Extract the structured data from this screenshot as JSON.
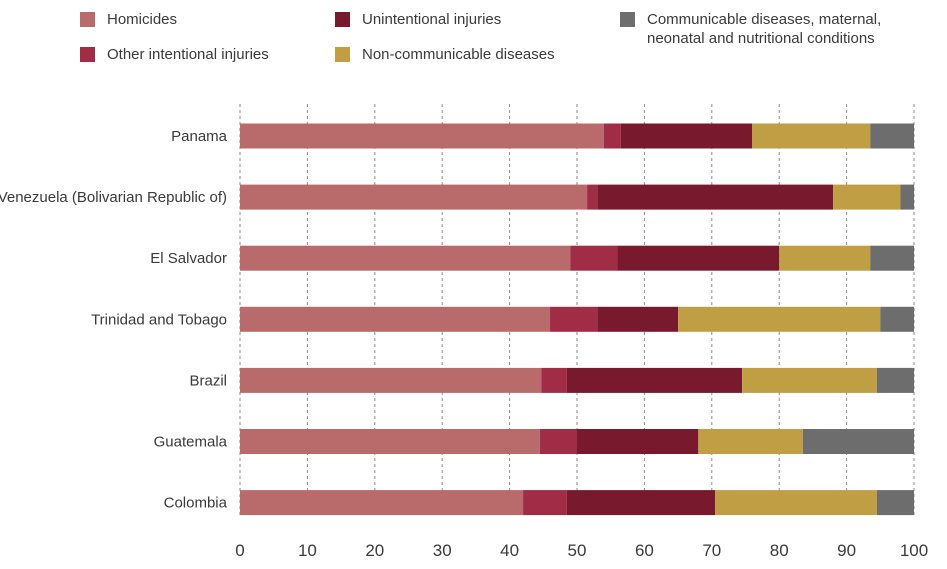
{
  "chart_data": {
    "type": "bar",
    "orientation": "horizontal",
    "stacked": true,
    "categories": [
      "Panama",
      "Venezuela (Bolivarian Republic of)",
      "El Salvador",
      "Trinidad and Tobago",
      "Brazil",
      "Guatemala",
      "Colombia"
    ],
    "series": [
      {
        "name": "Homicides",
        "color": "#b96b6b",
        "values": [
          54.0,
          51.5,
          49.0,
          46.0,
          44.7,
          44.5,
          42.0
        ]
      },
      {
        "name": "Other intentional injuries",
        "color": "#a02c45",
        "values": [
          2.5,
          1.5,
          7.0,
          7.0,
          3.8,
          5.5,
          6.5
        ]
      },
      {
        "name": "Unintentional injuries",
        "color": "#79192d",
        "values": [
          19.5,
          35.0,
          24.0,
          12.0,
          26.0,
          18.0,
          22.0
        ]
      },
      {
        "name": "Non-communicable diseases",
        "color": "#bf9e44",
        "values": [
          17.5,
          10.0,
          13.5,
          30.0,
          20.0,
          15.5,
          24.0
        ]
      },
      {
        "name": "Communicable diseases, maternal, neonatal and nutritional conditions",
        "color": "#6d6d6d",
        "values": [
          6.5,
          2.5,
          6.5,
          5.0,
          5.5,
          16.5,
          5.5
        ]
      }
    ],
    "xlim": [
      0,
      100
    ],
    "xticks": [
      0,
      10,
      20,
      30,
      40,
      50,
      60,
      70,
      80,
      90,
      100
    ],
    "grid": "vertical-dashed",
    "legend_position": "top"
  }
}
